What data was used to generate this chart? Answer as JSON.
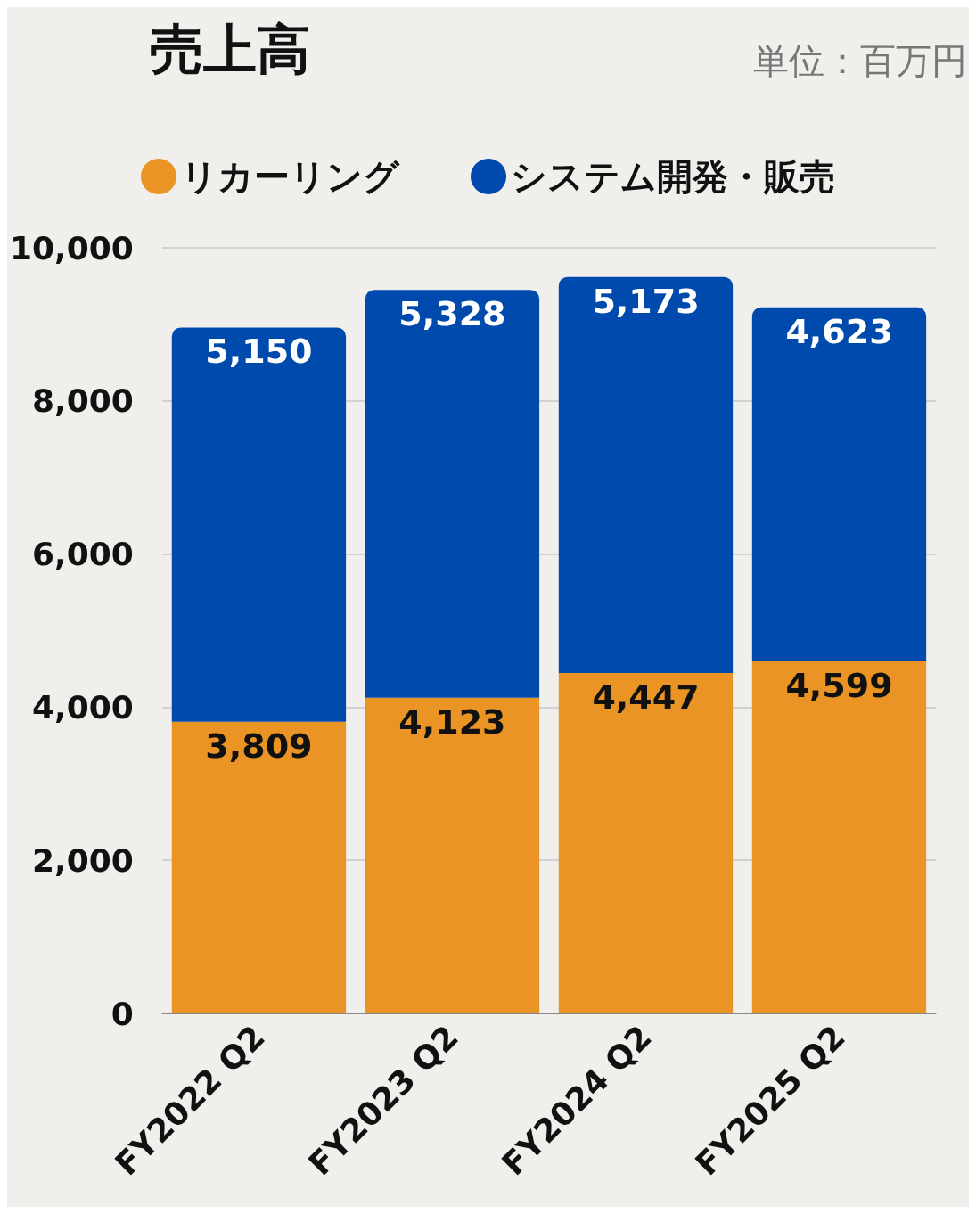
{
  "chart_data": {
    "type": "bar",
    "title": "売上高",
    "annotations": [
      "単位：百万円"
    ],
    "categories": [
      "FY2022 Q2",
      "FY2023 Q2",
      "FY2024 Q2",
      "FY2025 Q2"
    ],
    "series": [
      {
        "name": "リカーリング",
        "color": "#e99425",
        "values": [
          3809,
          4123,
          4447,
          4599
        ],
        "value_labels": [
          "3,809",
          "4,123",
          "4,447",
          "4,599"
        ]
      },
      {
        "name": "システム開発・販売",
        "color": "#004aad",
        "values": [
          5150,
          5328,
          5173,
          4623
        ],
        "value_labels": [
          "5,150",
          "5,328",
          "5,173",
          "4,623"
        ]
      }
    ],
    "stacked": true,
    "ylim": [
      0,
      10000
    ],
    "yticks": [
      0,
      {
        "value": 2000,
        "label": "2,000"
      },
      {
        "value": 4000,
        "label": "4,000"
      },
      {
        "value": 6000,
        "label": "6,000"
      },
      {
        "value": 8000,
        "label": "8,000"
      },
      {
        "value": 10000,
        "label": "10,000"
      }
    ],
    "grid": "y",
    "legend": "top"
  }
}
